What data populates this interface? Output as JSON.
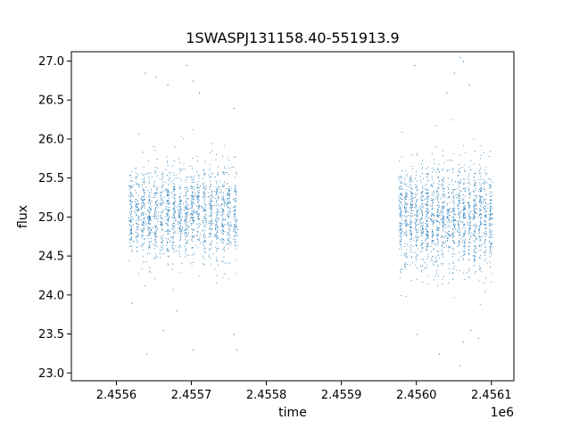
{
  "chart_data": {
    "type": "scatter",
    "title": "1SWASPJ131158.40-551913.9",
    "xlabel": "time",
    "ylabel": "flux",
    "x_offset_label": "1e6",
    "xlim": [
      2.45554,
      2.45613
    ],
    "ylim": [
      22.9,
      27.12
    ],
    "x_ticks": [
      2.4556,
      2.4557,
      2.4558,
      2.4559,
      2.456,
      2.4561
    ],
    "x_tick_labels": [
      "2.4556",
      "2.4557",
      "2.4558",
      "2.4559",
      "2.4560",
      "2.4561"
    ],
    "y_ticks": [
      23.0,
      23.5,
      24.0,
      24.5,
      25.0,
      25.5,
      26.0,
      26.5,
      27.0
    ],
    "y_tick_labels": [
      "23.0",
      "23.5",
      "24.0",
      "24.5",
      "25.0",
      "25.5",
      "26.0",
      "26.5",
      "27.0"
    ],
    "grid": false,
    "marker_color": "#1f77b4",
    "series": [
      {
        "segments": [
          {
            "x_range": [
              2.455615,
              2.455762
            ],
            "y_center": 25.05,
            "y_spread": 0.3,
            "n_points": 1800
          },
          {
            "x_range": [
              2.455975,
              2.456102
            ],
            "y_center": 25.0,
            "y_spread": 0.33,
            "n_points": 1800
          }
        ],
        "outliers": [
          {
            "x": 2.455638,
            "y": 26.85
          },
          {
            "x": 2.455652,
            "y": 26.8
          },
          {
            "x": 2.455668,
            "y": 26.7
          },
          {
            "x": 2.455693,
            "y": 26.95
          },
          {
            "x": 2.455702,
            "y": 26.75
          },
          {
            "x": 2.45571,
            "y": 26.6
          },
          {
            "x": 2.455756,
            "y": 26.4
          },
          {
            "x": 2.45562,
            "y": 23.9
          },
          {
            "x": 2.45564,
            "y": 23.25
          },
          {
            "x": 2.455662,
            "y": 23.55
          },
          {
            "x": 2.45568,
            "y": 23.8
          },
          {
            "x": 2.455702,
            "y": 23.3
          },
          {
            "x": 2.455756,
            "y": 23.5
          },
          {
            "x": 2.45576,
            "y": 23.3
          },
          {
            "x": 2.455997,
            "y": 26.95
          },
          {
            "x": 2.45604,
            "y": 26.6
          },
          {
            "x": 2.45605,
            "y": 26.85
          },
          {
            "x": 2.456058,
            "y": 27.05
          },
          {
            "x": 2.456062,
            "y": 27.0
          },
          {
            "x": 2.45607,
            "y": 26.7
          },
          {
            "x": 2.45603,
            "y": 23.25
          },
          {
            "x": 2.456058,
            "y": 23.1
          },
          {
            "x": 2.456062,
            "y": 23.4
          },
          {
            "x": 2.456072,
            "y": 23.55
          },
          {
            "x": 2.456082,
            "y": 23.45
          },
          {
            "x": 2.456,
            "y": 23.5
          }
        ]
      }
    ]
  }
}
